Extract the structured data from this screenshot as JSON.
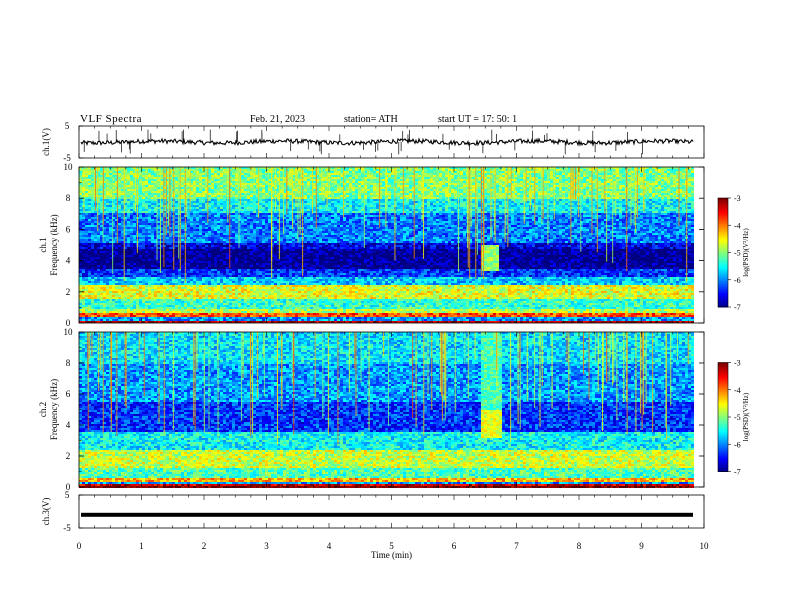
{
  "header": {
    "title": "VLF  Spectra",
    "date": "Feb. 21, 2023",
    "station": "station= ATH",
    "start": "start  UT  =    17: 50: 1"
  },
  "chart_data": [
    {
      "type": "line",
      "panel": "ch1-waveform",
      "ylabel": "ch.1(V)",
      "ylim": [
        -5,
        5
      ],
      "yticks": [
        "5",
        "-5"
      ],
      "xlim": [
        0,
        10
      ],
      "series_color": "#000000",
      "approx_level": 0
    },
    {
      "type": "heatmap",
      "panel": "ch1-spectrogram",
      "ylabel_line1": "ch.1",
      "ylabel_line2": "Frequency  (kHz)",
      "ylim": [
        0,
        10
      ],
      "yticks": [
        "0",
        "2",
        "4",
        "6",
        "8",
        "10"
      ],
      "xlim": [
        0,
        10
      ],
      "x_data_end": 9.8,
      "colorbar": {
        "label": "log(PSD)(V²/Hz)",
        "range": [
          -7,
          -3
        ],
        "ticks": [
          "-3",
          "-4",
          "-5",
          "-6",
          "-7"
        ]
      },
      "background_level": -5.9,
      "bands": [
        {
          "f": [
            0.0,
            0.15
          ],
          "v": -3.2
        },
        {
          "f": [
            0.4,
            0.6
          ],
          "v": -3.8
        },
        {
          "f": [
            0.6,
            0.9
          ],
          "v": -4.8
        },
        {
          "f": [
            0.9,
            1.6
          ],
          "v": -5.3
        },
        {
          "f": [
            1.6,
            2.4
          ],
          "v": -4.6
        },
        {
          "f": [
            2.4,
            3.0
          ],
          "v": -5.7
        },
        {
          "f": [
            3.0,
            3.5
          ],
          "v": -6.3
        },
        {
          "f": [
            3.5,
            4.8
          ],
          "v": -6.95
        },
        {
          "f": [
            4.8,
            5.1
          ],
          "v": -6.6
        },
        {
          "f": [
            5.1,
            7.0
          ],
          "v": -6.0
        },
        {
          "f": [
            7.0,
            8.0
          ],
          "v": -5.5
        },
        {
          "f": [
            8.0,
            10.0
          ],
          "v": -5.0
        }
      ],
      "bursts": [
        {
          "t": [
            6.4,
            6.7
          ],
          "f": [
            3.3,
            5.0
          ],
          "v": -4.9
        }
      ]
    },
    {
      "type": "heatmap",
      "panel": "ch2-spectrogram",
      "ylabel_line1": "ch.2",
      "ylabel_line2": "Frequency  (kHz)",
      "ylim": [
        0,
        10
      ],
      "yticks": [
        "0",
        "2",
        "4",
        "6",
        "8",
        "10"
      ],
      "xlim": [
        0,
        10
      ],
      "x_data_end": 9.8,
      "colorbar": {
        "label": "log(PSD)(V²/Hz)",
        "range": [
          -7,
          -3
        ],
        "ticks": [
          "-3",
          "-4",
          "-5",
          "-6",
          "-7"
        ]
      },
      "background_level": -5.9,
      "bands": [
        {
          "f": [
            0.0,
            0.2
          ],
          "v": -3.3
        },
        {
          "f": [
            0.3,
            0.6
          ],
          "v": -4.2
        },
        {
          "f": [
            0.6,
            1.2
          ],
          "v": -5.2
        },
        {
          "f": [
            1.2,
            2.4
          ],
          "v": -4.7
        },
        {
          "f": [
            2.4,
            3.5
          ],
          "v": -5.5
        },
        {
          "f": [
            3.5,
            5.5
          ],
          "v": -6.3
        },
        {
          "f": [
            5.5,
            8.0
          ],
          "v": -5.9
        },
        {
          "f": [
            8.0,
            10.0
          ],
          "v": -5.6
        }
      ],
      "bursts": [
        {
          "t": [
            6.4,
            6.75
          ],
          "f": [
            3.2,
            5.0
          ],
          "v": -4.6
        },
        {
          "t": [
            6.4,
            6.75
          ],
          "f": [
            5.0,
            10.0
          ],
          "v": -5.2
        }
      ]
    },
    {
      "type": "line",
      "panel": "ch3-waveform",
      "ylabel": "ch.3(V)",
      "ylim": [
        -5,
        5
      ],
      "yticks": [
        "5",
        "-5"
      ],
      "xlabel": "Time  (min)",
      "xlim": [
        0,
        10
      ],
      "xticks": [
        "0",
        "1",
        "2",
        "3",
        "4",
        "5",
        "6",
        "7",
        "8",
        "9",
        "10"
      ],
      "series_color": "#000000",
      "approx_level": -1
    }
  ]
}
